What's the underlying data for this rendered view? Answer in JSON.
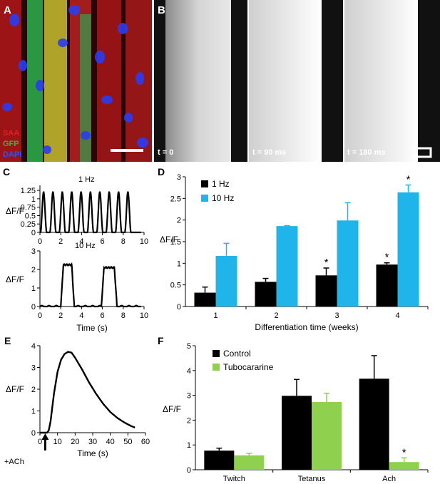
{
  "panels": {
    "A": {
      "letter": "A",
      "legend": [
        {
          "label": "SAA",
          "color": "#e02020"
        },
        {
          "label": "GFP",
          "color": "#20c040"
        },
        {
          "label": "DAPI",
          "color": "#3050ff"
        }
      ]
    },
    "B": {
      "letter": "B",
      "frames": [
        {
          "label": "t = 0"
        },
        {
          "label": "t = 90 ms"
        },
        {
          "label": "t = 180 ms"
        }
      ]
    },
    "C": {
      "letter": "C"
    },
    "D": {
      "letter": "D"
    },
    "E": {
      "letter": "E",
      "stimulus_label": "+ACh"
    },
    "F": {
      "letter": "F"
    }
  },
  "chart_data": [
    {
      "id": "C1",
      "type": "line",
      "annotation": "1 Hz",
      "xlabel": "",
      "ylabel": "ΔF/F",
      "xlim": [
        0,
        10
      ],
      "ylim": [
        0,
        1.4
      ],
      "xticks": [
        0,
        2,
        4,
        6,
        8,
        10
      ],
      "yticks": [
        0,
        0.25,
        0.5,
        0.75,
        1,
        1.25
      ],
      "ytick_labels": [
        "0",
        "0.25",
        "0.5",
        "0.75",
        "1",
        "1.25"
      ],
      "peaks": {
        "first": 0.35,
        "period": 0.9,
        "count": 10,
        "amplitude": 1.2,
        "halfwidth": 0.3
      }
    },
    {
      "id": "C2",
      "type": "line",
      "annotation": "10 Hz",
      "xlabel": "Time (s)",
      "ylabel": "ΔF/F",
      "xlim": [
        0,
        10
      ],
      "ylim": [
        0,
        3
      ],
      "xticks": [
        0,
        2,
        4,
        6,
        8,
        10
      ],
      "yticks": [
        0,
        1,
        2,
        3
      ],
      "ytick_labels": [
        "0",
        "1",
        "2",
        "3"
      ],
      "pulses": [
        {
          "start": 2.0,
          "end": 3.3,
          "level": 2.25
        },
        {
          "start": 5.9,
          "end": 7.4,
          "level": 2.1
        }
      ]
    },
    {
      "id": "D",
      "type": "bar",
      "xlabel": "Differentiation time (weeks)",
      "ylabel": "ΔF/F",
      "categories": [
        "1",
        "2",
        "3",
        "4"
      ],
      "ylim": [
        0,
        3
      ],
      "yticks": [
        0,
        0.5,
        1,
        1.5,
        2,
        2.5,
        3
      ],
      "ytick_labels": [
        "0",
        "0.5",
        "1",
        "1.5",
        "2",
        "2.5",
        "3"
      ],
      "legend_position": "top-left",
      "series": [
        {
          "name": "1 Hz",
          "color": "#000000",
          "values": [
            0.32,
            0.57,
            0.72,
            0.97
          ],
          "errors": [
            0.13,
            0.08,
            0.17,
            0.04
          ],
          "significant": [
            false,
            false,
            true,
            true
          ]
        },
        {
          "name": "10 Hz",
          "color": "#1fb4ea",
          "values": [
            1.17,
            1.86,
            1.99,
            2.64
          ],
          "errors": [
            0.29,
            0.01,
            0.41,
            0.17
          ],
          "significant": [
            false,
            false,
            false,
            true
          ]
        }
      ],
      "significance_mark": "*"
    },
    {
      "id": "E",
      "type": "line",
      "xlabel": "Time (s)",
      "ylabel": "ΔF/F",
      "xlim": [
        0,
        60
      ],
      "ylim": [
        0,
        4
      ],
      "xticks": [
        0,
        10,
        20,
        30,
        40,
        50,
        60
      ],
      "yticks": [
        0,
        1,
        2,
        3,
        4
      ],
      "ytick_labels": [
        "0",
        "1",
        "2",
        "3",
        "4"
      ],
      "x": [
        0,
        4,
        5,
        6,
        8,
        10,
        12,
        14,
        16,
        18,
        20,
        24,
        28,
        32,
        36,
        40,
        44,
        48,
        52,
        54
      ],
      "y": [
        0,
        0,
        0.1,
        0.5,
        1.8,
        2.8,
        3.35,
        3.62,
        3.72,
        3.68,
        3.45,
        2.9,
        2.3,
        1.78,
        1.32,
        0.95,
        0.68,
        0.47,
        0.3,
        0.24
      ]
    },
    {
      "id": "F",
      "type": "bar",
      "xlabel": "",
      "ylabel": "ΔF/F",
      "categories": [
        "Twitch",
        "Tetanus",
        "Ach"
      ],
      "ylim": [
        0,
        5
      ],
      "yticks": [
        0,
        1,
        2,
        3,
        4,
        5
      ],
      "ytick_labels": [
        "0",
        "1",
        "2",
        "3",
        "4",
        "5"
      ],
      "legend_position": "top-left",
      "series": [
        {
          "name": "Control",
          "color": "#000000",
          "values": [
            0.77,
            2.98,
            3.67
          ],
          "errors": [
            0.1,
            0.66,
            0.93
          ],
          "significant": [
            false,
            false,
            false
          ]
        },
        {
          "name": "Tubocararine",
          "color": "#8fd14f",
          "values": [
            0.58,
            2.73,
            0.31
          ],
          "errors": [
            0.08,
            0.35,
            0.17
          ],
          "significant": [
            false,
            false,
            true
          ]
        }
      ],
      "significance_mark": "*"
    }
  ]
}
